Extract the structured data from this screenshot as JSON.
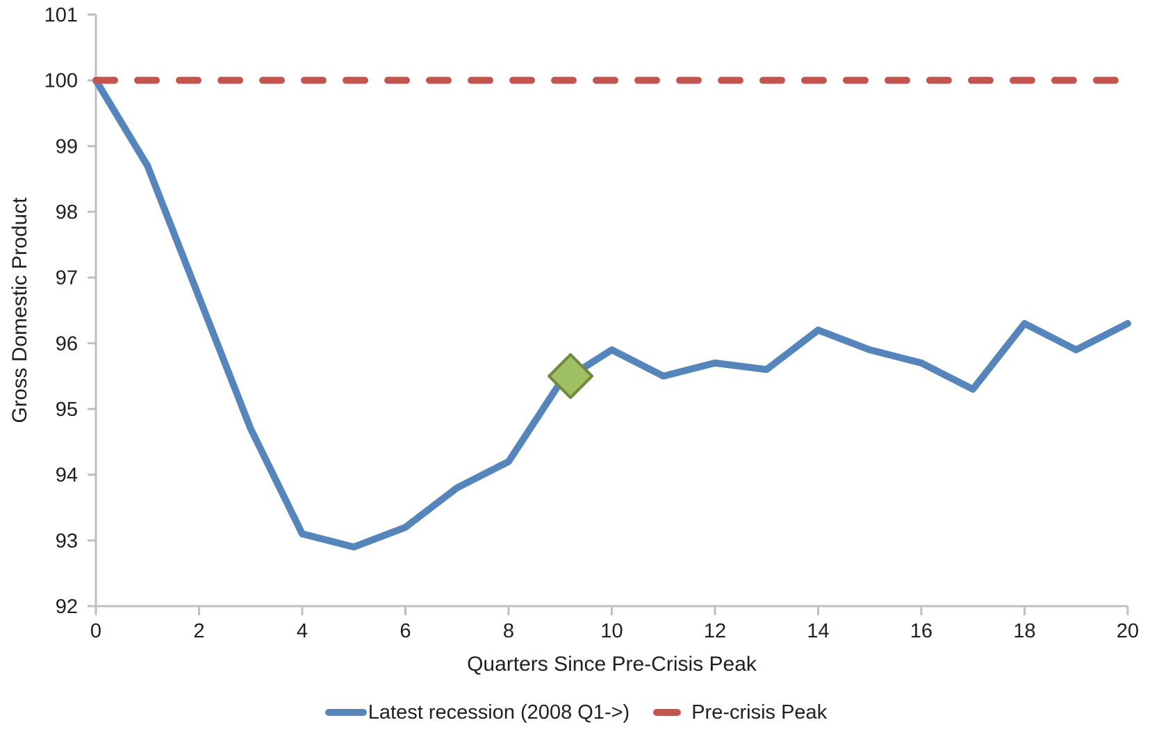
{
  "chart_data": {
    "type": "line",
    "title": "",
    "xlabel": "Quarters Since Pre-Crisis Peak",
    "ylabel": "Gross Domestic Product",
    "xlim": [
      0,
      20
    ],
    "ylim": [
      92,
      101
    ],
    "x_ticks": [
      0,
      2,
      4,
      6,
      8,
      10,
      12,
      14,
      16,
      18,
      20
    ],
    "y_ticks": [
      92,
      93,
      94,
      95,
      96,
      97,
      98,
      99,
      100,
      101
    ],
    "grid": false,
    "legend_position": "bottom-center",
    "axis_color": "#BFBFBF",
    "text_color": "#1f1f1f",
    "series": [
      {
        "name": "Latest recession (2008 Q1->)",
        "type": "line",
        "color": "#5585BB",
        "stroke_width": 10,
        "x": [
          0,
          1,
          2,
          3,
          4,
          5,
          6,
          7,
          8,
          9,
          10,
          11,
          12,
          13,
          14,
          15,
          16,
          17,
          18,
          19,
          20
        ],
        "values": [
          100,
          98.7,
          96.7,
          94.7,
          93.1,
          92.9,
          93.2,
          93.8,
          94.2,
          95.4,
          95.9,
          95.5,
          95.7,
          95.6,
          96.2,
          95.9,
          95.7,
          95.3,
          96.3,
          95.9,
          96.3
        ]
      },
      {
        "name": "Pre-crisis Peak",
        "type": "dashed-horizontal-line",
        "color": "#C4544E",
        "stroke_width": 10,
        "value": 100
      }
    ],
    "marker": {
      "shape": "diamond",
      "x": 9.2,
      "value": 95.5,
      "fill": "#9FBF63",
      "stroke": "#71893F"
    }
  }
}
